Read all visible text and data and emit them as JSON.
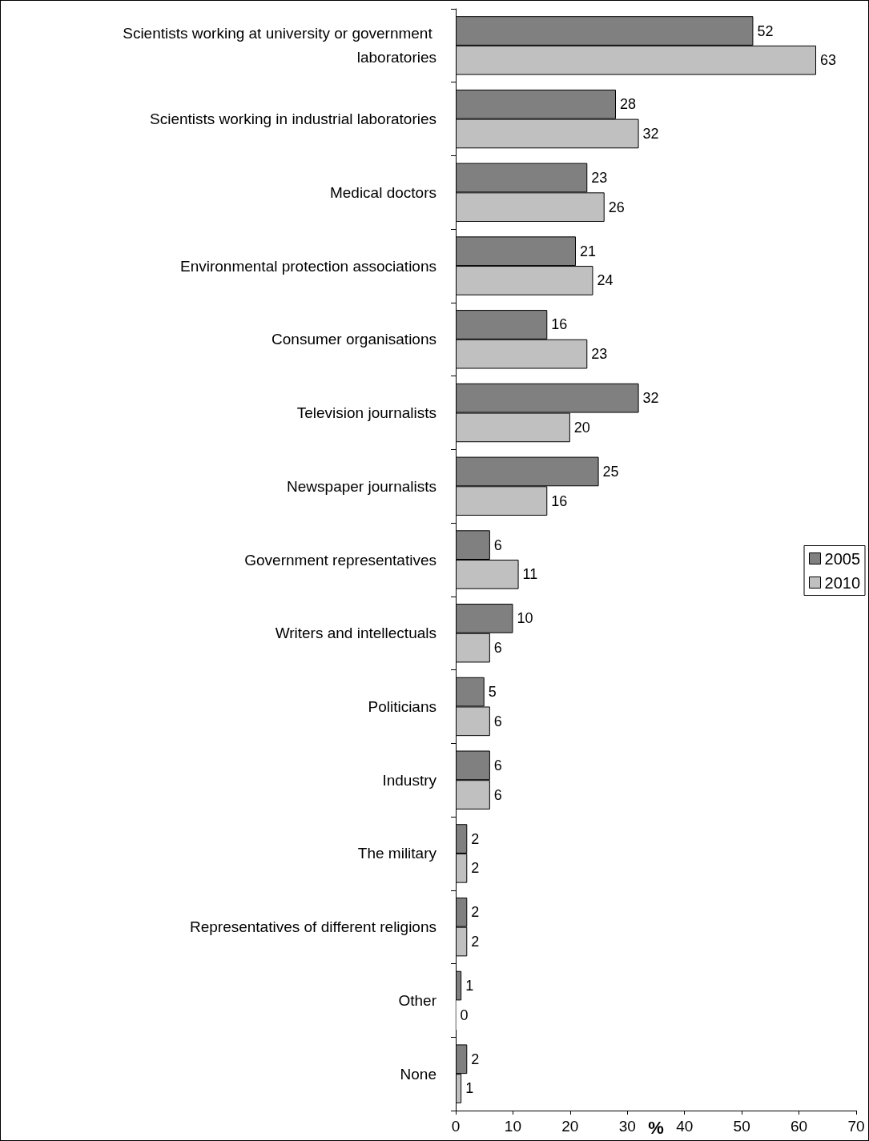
{
  "chart_data": {
    "type": "bar",
    "orientation": "horizontal",
    "xlabel": "%",
    "categories": [
      "Scientists working at university or government laboratories",
      "Scientists working in industrial laboratories",
      "Medical doctors",
      "Environmental protection associations",
      "Consumer organisations",
      "Television journalists",
      "Newspaper journalists",
      "Government representatives",
      "Writers and intellectuals",
      "Politicians",
      "Industry",
      "The military",
      "Representatives of different religions",
      "Other",
      "None"
    ],
    "series": [
      {
        "name": "2005",
        "color": "#808080",
        "values": [
          52,
          28,
          23,
          21,
          16,
          32,
          25,
          6,
          10,
          5,
          6,
          2,
          2,
          1,
          2
        ]
      },
      {
        "name": "2010",
        "color": "#c0c0c0",
        "values": [
          63,
          32,
          26,
          24,
          23,
          20,
          16,
          11,
          6,
          6,
          6,
          2,
          2,
          0,
          1
        ]
      }
    ],
    "xlim": [
      0,
      70
    ],
    "xticks": [
      0,
      10,
      20,
      30,
      40,
      50,
      60,
      70
    ],
    "data_labels": true,
    "legend": "right",
    "grid": false
  }
}
